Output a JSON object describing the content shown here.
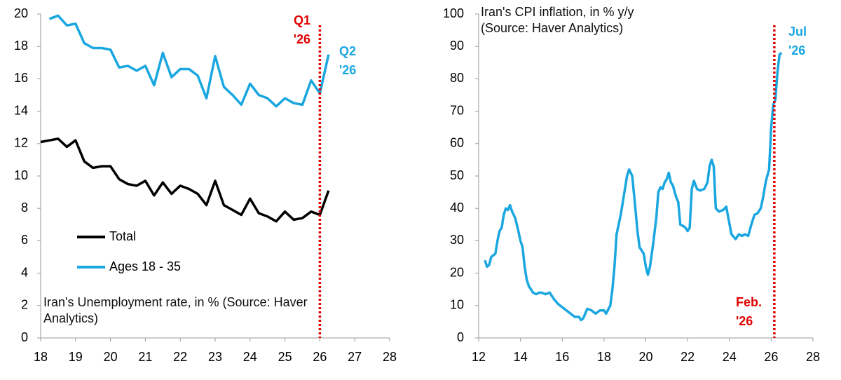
{
  "chart_data": [
    {
      "type": "line",
      "title": "Iran's Unemployment rate, in % (Source: Haver Analytics)",
      "x": [
        18.0,
        18.25,
        18.5,
        18.75,
        19.0,
        19.25,
        19.5,
        19.75,
        20.0,
        20.25,
        20.5,
        20.75,
        21.0,
        21.25,
        21.5,
        21.75,
        22.0,
        22.25,
        22.5,
        22.75,
        23.0,
        23.25,
        23.5,
        23.75,
        24.0,
        24.25,
        24.5,
        24.75,
        25.0,
        25.25,
        25.5,
        25.75,
        26.0,
        26.25
      ],
      "series": [
        {
          "name": "Total",
          "color": "#000000",
          "values": [
            12.1,
            12.2,
            12.3,
            11.8,
            12.2,
            10.9,
            10.5,
            10.6,
            10.6,
            9.8,
            9.5,
            9.4,
            9.7,
            8.8,
            9.6,
            8.9,
            9.4,
            9.2,
            8.9,
            8.2,
            9.7,
            8.2,
            7.9,
            7.6,
            8.6,
            7.7,
            7.5,
            7.2,
            7.8,
            7.3,
            7.4,
            7.8,
            7.6,
            9.1
          ]
        },
        {
          "name": "Ages 18 - 35",
          "color": "#1aa7e0",
          "values": [
            null,
            19.7,
            19.9,
            19.3,
            19.4,
            18.2,
            17.9,
            17.9,
            17.8,
            16.7,
            16.8,
            16.5,
            16.8,
            15.6,
            17.6,
            16.1,
            16.6,
            16.6,
            16.2,
            14.8,
            17.4,
            15.5,
            15.0,
            14.4,
            15.7,
            15.0,
            14.8,
            14.3,
            14.8,
            14.5,
            14.4,
            15.9,
            15.1,
            17.5
          ]
        }
      ],
      "xlim": [
        18,
        28
      ],
      "xticks": [
        18,
        19,
        20,
        21,
        22,
        23,
        24,
        25,
        26,
        27,
        28
      ],
      "ylim": [
        0,
        20
      ],
      "yticks": [
        0,
        2,
        4,
        6,
        8,
        10,
        12,
        14,
        16,
        18,
        20
      ],
      "grid": false,
      "legend": "left",
      "vline": {
        "value": 26,
        "color": "#e00000"
      },
      "annotations": [
        {
          "text": [
            "Q1",
            "'26"
          ],
          "color": "#e00000"
        },
        {
          "text": [
            "Q2",
            "'26"
          ],
          "color": "#1aa7e0"
        }
      ]
    },
    {
      "type": "line",
      "title": "Iran's CPI inflation, in % y/y (Source: Haver Analytics)",
      "x": [
        12.3,
        12.4,
        12.5,
        12.6,
        12.8,
        12.9,
        13.0,
        13.1,
        13.2,
        13.3,
        13.4,
        13.5,
        13.6,
        13.75,
        13.9,
        14.0,
        14.1,
        14.2,
        14.3,
        14.4,
        14.5,
        14.6,
        14.75,
        14.9,
        15.0,
        15.2,
        15.4,
        15.6,
        15.8,
        16.0,
        16.2,
        16.4,
        16.6,
        16.8,
        16.9,
        17.0,
        17.2,
        17.4,
        17.6,
        17.8,
        18.0,
        18.1,
        18.3,
        18.4,
        18.5,
        18.6,
        18.8,
        18.9,
        19.0,
        19.1,
        19.2,
        19.35,
        19.5,
        19.6,
        19.7,
        19.8,
        19.9,
        20.0,
        20.1,
        20.2,
        20.35,
        20.5,
        20.6,
        20.7,
        20.8,
        20.9,
        21.0,
        21.1,
        21.2,
        21.3,
        21.45,
        21.55,
        21.65,
        21.8,
        21.9,
        22.0,
        22.1,
        22.2,
        22.3,
        22.45,
        22.6,
        22.8,
        22.95,
        23.05,
        23.15,
        23.25,
        23.35,
        23.5,
        23.7,
        23.85,
        23.95,
        24.1,
        24.3,
        24.45,
        24.6,
        24.75,
        24.9,
        25.05,
        25.2,
        25.35,
        25.5,
        25.6,
        25.75,
        25.9,
        26.0,
        26.1,
        26.2,
        26.3,
        26.4,
        26.5
      ],
      "values": [
        24,
        22,
        22.5,
        25,
        26,
        30,
        33,
        34,
        38,
        40,
        39.5,
        41,
        39,
        37,
        33,
        30,
        28,
        22,
        18,
        16,
        15,
        14,
        13.5,
        14,
        14,
        13.5,
        14,
        12,
        10.5,
        9.5,
        8.5,
        7.5,
        6.5,
        6.5,
        5.5,
        6,
        9,
        8.5,
        7.5,
        8.5,
        8.5,
        7.5,
        10,
        15,
        22,
        32,
        38,
        42,
        46,
        50,
        52,
        50,
        40,
        33,
        28,
        27,
        26,
        22,
        19.5,
        22,
        29,
        37,
        45,
        46.5,
        46,
        48,
        49,
        51,
        48,
        47,
        43.5,
        42,
        35,
        34.5,
        34,
        33,
        34,
        46,
        48.5,
        46,
        45.5,
        46,
        48,
        53,
        55,
        53,
        40,
        39,
        39.5,
        40.5,
        37,
        32,
        30.5,
        32,
        31.5,
        32,
        31.5,
        35,
        38,
        38.5,
        40,
        43,
        48.5,
        52,
        65,
        72,
        73.5,
        82,
        87.5,
        88
      ],
      "color": "#1aa7e0",
      "xlim": [
        12,
        28
      ],
      "xticks": [
        12,
        14,
        16,
        18,
        20,
        22,
        24,
        26,
        28
      ],
      "ylim": [
        0,
        100
      ],
      "yticks": [
        0,
        10,
        20,
        30,
        40,
        50,
        60,
        70,
        80,
        90,
        100
      ],
      "grid": false,
      "vline": {
        "value": 26.15,
        "color": "#e00000"
      },
      "annotations": [
        {
          "text": [
            "Jul",
            "'26"
          ],
          "color": "#1aa7e0"
        },
        {
          "text": [
            "Feb.",
            "'26"
          ],
          "color": "#e00000"
        }
      ]
    }
  ]
}
